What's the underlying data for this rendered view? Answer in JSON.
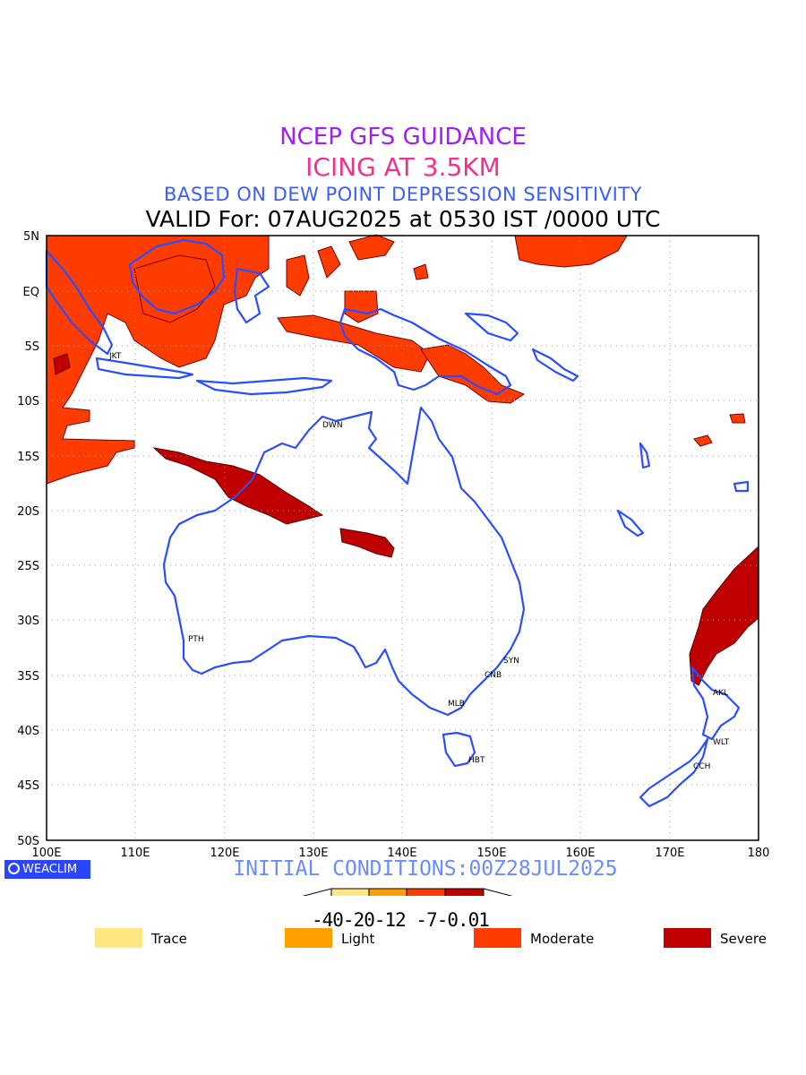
{
  "header": {
    "line1": "NCEP GFS GUIDANCE",
    "line2": "ICING AT 3.5KM",
    "line3": "BASED ON DEW POINT DEPRESSION SENSITIVITY",
    "line4": "VALID For: 07AUG2025 at 0530 IST /0000 UTC"
  },
  "axes": {
    "lat_labels": [
      "5N",
      "EQ",
      "5S",
      "10S",
      "15S",
      "20S",
      "25S",
      "30S",
      "35S",
      "40S",
      "45S",
      "50S"
    ],
    "lon_labels": [
      "100E",
      "110E",
      "120E",
      "130E",
      "140E",
      "150E",
      "160E",
      "170E",
      "180"
    ]
  },
  "cities": [
    {
      "name": "JKT"
    },
    {
      "name": "DWN"
    },
    {
      "name": "PTH"
    },
    {
      "name": "SYN"
    },
    {
      "name": "CNB"
    },
    {
      "name": "MLB"
    },
    {
      "name": "HBT"
    },
    {
      "name": "AKL"
    },
    {
      "name": "WLT"
    },
    {
      "name": "CCH"
    }
  ],
  "footer": {
    "initial_conditions": "INITIAL CONDITIONS:00Z28JUL2025",
    "logo_text": "WEACLIM",
    "colorbar_ticks": "-40-20-12 -7-0.01"
  },
  "legend": [
    {
      "label": "Trace",
      "color": "#ffe680"
    },
    {
      "label": "Light",
      "color": "#ffa000"
    },
    {
      "label": "Moderate",
      "color": "#ff3c00"
    },
    {
      "label": "Severe",
      "color": "#c00000"
    }
  ],
  "colors": {
    "coast": "#2a4dff",
    "moderate": "#ff3c00",
    "severe": "#c00000",
    "grid": "#9a9a9a"
  }
}
